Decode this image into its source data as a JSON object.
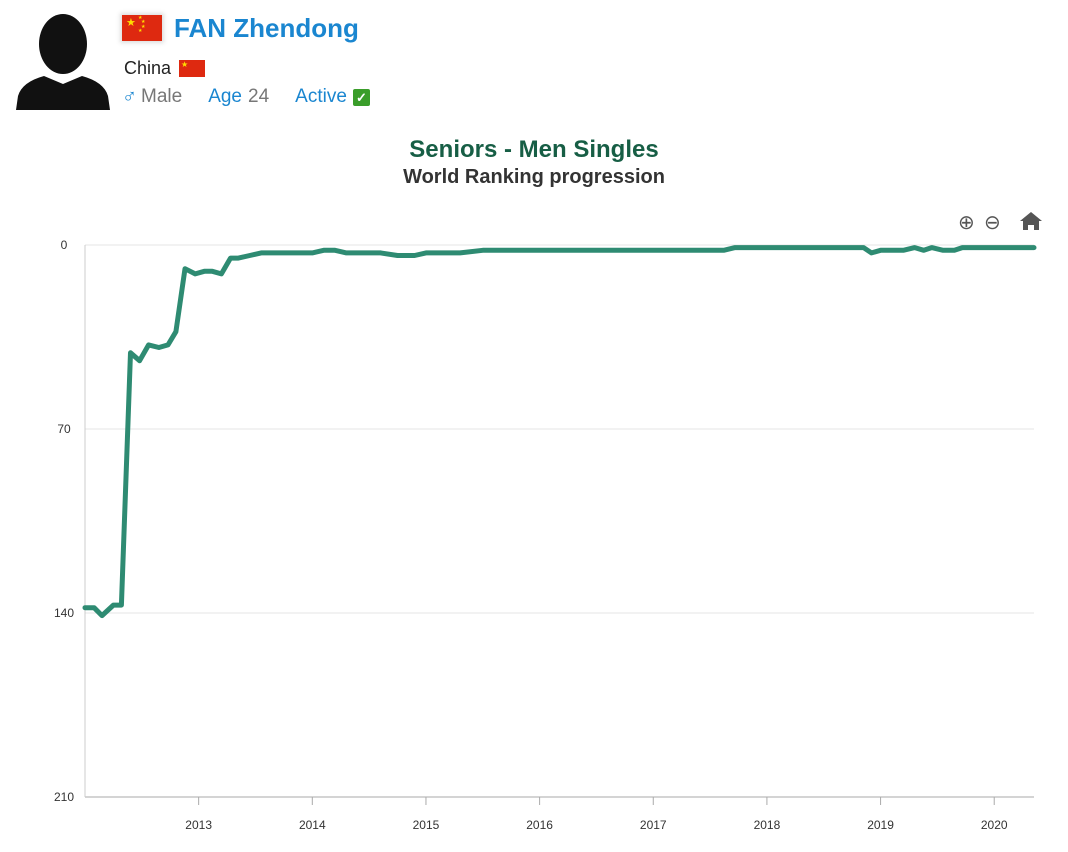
{
  "profile": {
    "name": "FAN Zhendong",
    "country": "China",
    "gender_symbol": "♂",
    "gender": "Male",
    "age_label": "Age",
    "age": "24",
    "status": "Active",
    "icons": [
      "avatar-silhouette",
      "china-flag",
      "male-icon",
      "check-icon"
    ],
    "flag_colors": {
      "red": "#de2910",
      "yellow": "#ffde00"
    }
  },
  "toolbar": {
    "zoom_in_symbol": "⊕",
    "zoom_out_symbol": "⊖",
    "home_icon": "home-icon"
  },
  "chart_data": {
    "type": "line",
    "title": "Seniors - Men Singles",
    "subtitle": "World Ranking progression",
    "xlabel": "",
    "ylabel": "",
    "y_inverted": true,
    "ylim": [
      0,
      210
    ],
    "yticks": [
      0,
      70,
      140,
      210
    ],
    "xlim": [
      2012.0,
      2020.35
    ],
    "xticks": [
      2013,
      2014,
      2015,
      2016,
      2017,
      2018,
      2019,
      2020
    ],
    "grid": "horizontal",
    "line_color": "#2e8b72",
    "series": [
      {
        "x": [
          2012.0,
          2012.08,
          2012.15,
          2012.25,
          2012.32,
          2012.4,
          2012.48,
          2012.56,
          2012.65,
          2012.73,
          2012.8,
          2012.88,
          2012.97,
          2013.05,
          2013.12,
          2013.2,
          2013.28,
          2013.35,
          2013.45,
          2013.55,
          2013.62,
          2013.75,
          2013.9,
          2014.0,
          2014.1,
          2014.2,
          2014.3,
          2014.45,
          2014.6,
          2014.75,
          2014.9,
          2015.0,
          2015.15,
          2015.3,
          2015.5,
          2016.0,
          2016.5,
          2017.0,
          2017.5,
          2017.62,
          2017.72,
          2018.0,
          2018.5,
          2018.85,
          2018.92,
          2019.0,
          2019.1,
          2019.2,
          2019.3,
          2019.38,
          2019.45,
          2019.55,
          2019.65,
          2019.72,
          2019.8,
          2020.0,
          2020.35
        ],
        "values": [
          138,
          138,
          141,
          137,
          137,
          41,
          44,
          38,
          39,
          38,
          33,
          9,
          11,
          10,
          10,
          11,
          5,
          5,
          4,
          3,
          3,
          3,
          3,
          3,
          2,
          2,
          3,
          3,
          3,
          4,
          4,
          3,
          3,
          3,
          2,
          2,
          2,
          2,
          2,
          2,
          1,
          1,
          1,
          1,
          3,
          2,
          2,
          2,
          1,
          2,
          1,
          2,
          2,
          1,
          1,
          1,
          1
        ]
      }
    ]
  }
}
